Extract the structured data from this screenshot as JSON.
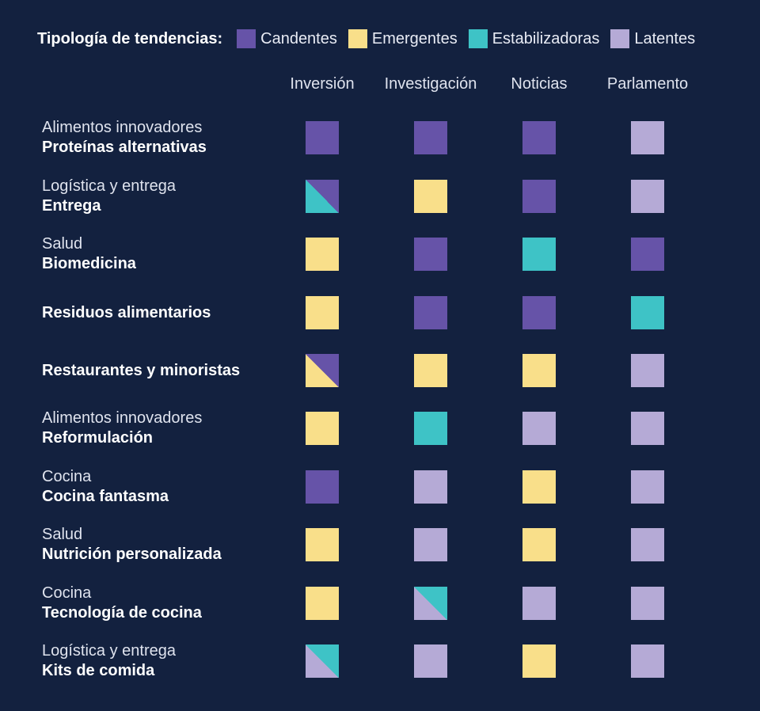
{
  "chart_data": {
    "type": "heatmap",
    "legend": {
      "title": "Tipología de tendencias:",
      "entries": [
        {
          "key": "candentes",
          "label": "Candentes",
          "color": "#6653a8"
        },
        {
          "key": "emergentes",
          "label": "Emergentes",
          "color": "#f9df8a"
        },
        {
          "key": "estabilizadoras",
          "label": "Estabilizadoras",
          "color": "#3ec3c6"
        },
        {
          "key": "latentes",
          "label": "Latentes",
          "color": "#b5aad6"
        }
      ]
    },
    "columns": [
      "Inversión",
      "Investigación",
      "Noticias",
      "Parlamento"
    ],
    "rows": [
      {
        "category": "Alimentos innovadores",
        "topic": "Proteínas alternativas",
        "cells": [
          [
            "candentes"
          ],
          [
            "candentes"
          ],
          [
            "candentes"
          ],
          [
            "latentes"
          ]
        ]
      },
      {
        "category": "Logística y entrega",
        "topic": "Entrega",
        "cells": [
          [
            "candentes",
            "estabilizadoras"
          ],
          [
            "emergentes"
          ],
          [
            "candentes"
          ],
          [
            "latentes"
          ]
        ]
      },
      {
        "category": "Salud",
        "topic": "Biomedicina",
        "cells": [
          [
            "emergentes"
          ],
          [
            "candentes"
          ],
          [
            "estabilizadoras"
          ],
          [
            "candentes"
          ]
        ]
      },
      {
        "category": "",
        "topic": "Residuos alimentarios",
        "cells": [
          [
            "emergentes"
          ],
          [
            "candentes"
          ],
          [
            "candentes"
          ],
          [
            "estabilizadoras"
          ]
        ]
      },
      {
        "category": "",
        "topic": "Restaurantes y minoristas",
        "cells": [
          [
            "candentes",
            "emergentes"
          ],
          [
            "emergentes"
          ],
          [
            "emergentes"
          ],
          [
            "latentes"
          ]
        ]
      },
      {
        "category": "Alimentos innovadores",
        "topic": "Reformulación",
        "cells": [
          [
            "emergentes"
          ],
          [
            "estabilizadoras"
          ],
          [
            "latentes"
          ],
          [
            "latentes"
          ]
        ]
      },
      {
        "category": "Cocina",
        "topic": "Cocina fantasma",
        "cells": [
          [
            "candentes"
          ],
          [
            "latentes"
          ],
          [
            "emergentes"
          ],
          [
            "latentes"
          ]
        ]
      },
      {
        "category": "Salud",
        "topic": "Nutrición personalizada",
        "cells": [
          [
            "emergentes"
          ],
          [
            "latentes"
          ],
          [
            "emergentes"
          ],
          [
            "latentes"
          ]
        ]
      },
      {
        "category": "Cocina",
        "topic": "Tecnología de cocina",
        "cells": [
          [
            "emergentes"
          ],
          [
            "estabilizadoras",
            "latentes"
          ],
          [
            "latentes"
          ],
          [
            "latentes"
          ]
        ]
      },
      {
        "category": "Logística y entrega",
        "topic": "Kits de comida",
        "cells": [
          [
            "estabilizadoras",
            "latentes"
          ],
          [
            "latentes"
          ],
          [
            "emergentes"
          ],
          [
            "latentes"
          ]
        ]
      }
    ]
  }
}
